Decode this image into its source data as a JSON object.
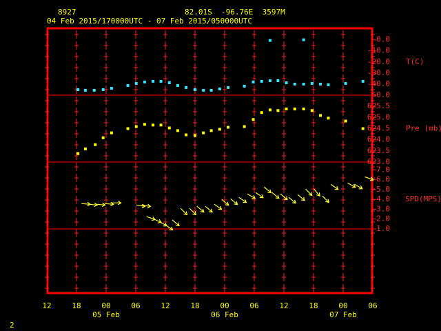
{
  "header": {
    "station": "8927",
    "location": "82.01S  -96.76E  3597M",
    "period": "04 Feb 2015/170000UTC - 07 Feb 2015/050000UTC",
    "page": "2"
  },
  "x_axis": {
    "xlim": [
      0,
      66
    ],
    "xticks": [
      {
        "value": 0,
        "label": "12"
      },
      {
        "value": 6,
        "label": "18"
      },
      {
        "value": 12,
        "label": "00"
      },
      {
        "value": 18,
        "label": "06"
      },
      {
        "value": 24,
        "label": "12"
      },
      {
        "value": 30,
        "label": "18"
      },
      {
        "value": 36,
        "label": "00"
      },
      {
        "value": 42,
        "label": "06"
      },
      {
        "value": 48,
        "label": "12"
      },
      {
        "value": 54,
        "label": "18"
      },
      {
        "value": 60,
        "label": "00"
      },
      {
        "value": 66,
        "label": "06"
      }
    ],
    "day_labels": [
      {
        "value": 12,
        "label": "05 Feb"
      },
      {
        "value": 36,
        "label": "06 Feb"
      },
      {
        "value": 60,
        "label": "07 Feb"
      }
    ]
  },
  "chart_data": [
    {
      "type": "scatter",
      "ylabel": "T(C)",
      "color": "#33e6ff",
      "ylim": [
        -50,
        11
      ],
      "yticks": [
        {
          "value": 0,
          "label": "0.0"
        },
        {
          "value": -10,
          "label": "-10.0"
        },
        {
          "value": -20,
          "label": "-20.0"
        },
        {
          "value": -30,
          "label": "-30.0"
        },
        {
          "value": -40,
          "label": "-40.0"
        },
        {
          "value": -50,
          "label": "-50.0"
        }
      ],
      "x": [
        6.3,
        7.8,
        9.6,
        11.4,
        13.1,
        16.4,
        18.1,
        19.8,
        21.5,
        23.1,
        24.8,
        26.5,
        28.2,
        30.0,
        31.7,
        33.3,
        35.0,
        36.7,
        40.0,
        41.8,
        43.5,
        45.2,
        46.8,
        48.5,
        50.2,
        52.0,
        53.7,
        55.4,
        57.0,
        60.5,
        64.0,
        45.2,
        52.0
      ],
      "values": [
        -45,
        -45.6,
        -45.6,
        -45,
        -43.8,
        -41.3,
        -39.4,
        -38.1,
        -37.5,
        -37.5,
        -38.8,
        -41.3,
        -43.1,
        -45,
        -45.6,
        -45.6,
        -44.4,
        -43.1,
        -41.9,
        -38.1,
        -37.5,
        -36.9,
        -36.9,
        -38.8,
        -40,
        -40,
        -39.4,
        -40,
        -40.6,
        -39.4,
        -37.5,
        -0.6,
        0
      ]
    },
    {
      "type": "scatter",
      "ylabel": "Pre (mb)",
      "color": "#ffff00",
      "ylim": [
        623,
        626
      ],
      "yticks": [
        625.5,
        {
          "value": 625,
          "label": "625.0"
        },
        624.5,
        {
          "value": 624,
          "label": "624.0"
        },
        623.5,
        {
          "value": 623,
          "label": "623.0"
        }
      ],
      "x": [
        6.3,
        7.8,
        9.8,
        11.4,
        13.1,
        16.4,
        18.1,
        19.8,
        21.5,
        23.1,
        24.8,
        26.5,
        28.2,
        30.0,
        31.7,
        33.3,
        35.0,
        36.7,
        40.0,
        41.8,
        43.5,
        45.2,
        46.8,
        48.5,
        50.2,
        52.0,
        53.7,
        55.4,
        57.0,
        60.5,
        64.0
      ],
      "values": [
        623.38,
        623.59,
        623.78,
        624.09,
        624.31,
        624.5,
        624.59,
        624.69,
        624.66,
        624.66,
        624.53,
        624.41,
        624.22,
        624.19,
        624.31,
        624.41,
        624.47,
        624.56,
        624.59,
        624.91,
        625.22,
        625.34,
        625.31,
        625.38,
        625.38,
        625.38,
        625.31,
        625.09,
        624.97,
        624.84,
        624.5
      ]
    },
    {
      "type": "wind",
      "ylabel": "SPD(MPS)",
      "color": "#ffff33",
      "ylim": [
        1,
        7.8
      ],
      "yticks": [
        {
          "value": 7,
          "label": "7.0"
        },
        {
          "value": 6,
          "label": "6.0"
        },
        {
          "value": 5,
          "label": "5.0"
        },
        {
          "value": 4,
          "label": "4.0"
        },
        {
          "value": 3,
          "label": "3.0"
        },
        {
          "value": 2,
          "label": "2.0"
        },
        {
          "value": 1,
          "label": "1.0"
        }
      ],
      "x": [
        7.0,
        8.4,
        10.0,
        11.7,
        13.2,
        18.1,
        19.2,
        20.2,
        21.5,
        22.7,
        24.0,
        25.4,
        27.1,
        28.9,
        30.4,
        32.1,
        33.9,
        35.4,
        37.2,
        38.9,
        40.6,
        42.3,
        44.0,
        45.6,
        47.3,
        49.0,
        50.8,
        52.4,
        54.1,
        55.8,
        57.5,
        60.9,
        62.3,
        64.4
      ],
      "values": [
        3.58,
        3.51,
        3.51,
        3.58,
        3.65,
        3.44,
        3.44,
        2.26,
        2.05,
        1.77,
        1.42,
        1.91,
        3.09,
        3.09,
        3.3,
        3.3,
        3.51,
        4.0,
        4.07,
        4.21,
        4.56,
        4.7,
        5.26,
        4.7,
        4.56,
        4.21,
        4.49,
        5.05,
        5.05,
        4.35,
        5.54,
        5.68,
        5.54,
        6.3
      ],
      "directions": [
        5,
        5,
        5,
        5,
        0,
        10,
        10,
        20,
        25,
        30,
        35,
        40,
        45,
        45,
        40,
        40,
        35,
        40,
        40,
        35,
        30,
        35,
        40,
        40,
        40,
        40,
        40,
        45,
        50,
        45,
        35,
        30,
        30,
        20
      ]
    }
  ]
}
